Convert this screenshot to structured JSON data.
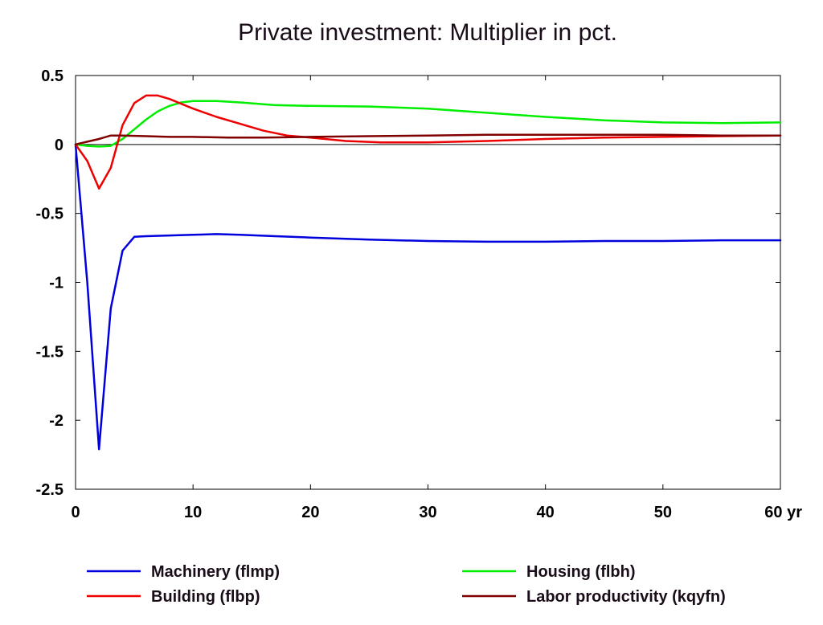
{
  "chart_data": {
    "type": "line",
    "title": "Private investment: Multiplier in pct.",
    "xlabel": "",
    "ylabel": "",
    "x_unit_label": "yr",
    "xlim": [
      0,
      60
    ],
    "ylim": [
      -2.5,
      0.5
    ],
    "x_ticks": [
      0,
      10,
      20,
      30,
      40,
      50,
      60
    ],
    "x_tick_labels": [
      "0",
      "10",
      "20",
      "30",
      "40",
      "50",
      "60 yr"
    ],
    "y_ticks": [
      0.5,
      0,
      -0.5,
      -1,
      -1.5,
      -2,
      -2.5
    ],
    "y_tick_labels": [
      "0.5",
      "0",
      "-0.5",
      "-1",
      "-1.5",
      "-2",
      "-2.5"
    ],
    "grid": false,
    "zero_line": true,
    "legend_position": "bottom",
    "series": [
      {
        "name": "Machinery (flmp)",
        "color": "#0000dd",
        "points": [
          [
            0,
            0
          ],
          [
            1,
            -1.0
          ],
          [
            2,
            -2.21
          ],
          [
            3,
            -1.19
          ],
          [
            4,
            -0.77
          ],
          [
            5,
            -0.67
          ],
          [
            6,
            -0.665
          ],
          [
            8,
            -0.66
          ],
          [
            10,
            -0.655
          ],
          [
            12,
            -0.65
          ],
          [
            14,
            -0.655
          ],
          [
            17,
            -0.665
          ],
          [
            20,
            -0.675
          ],
          [
            25,
            -0.69
          ],
          [
            30,
            -0.7
          ],
          [
            35,
            -0.705
          ],
          [
            40,
            -0.705
          ],
          [
            45,
            -0.7
          ],
          [
            50,
            -0.7
          ],
          [
            55,
            -0.695
          ],
          [
            60,
            -0.695
          ]
        ]
      },
      {
        "name": "Housing (flbh)",
        "color": "#00ee00",
        "points": [
          [
            0,
            0
          ],
          [
            1,
            -0.01
          ],
          [
            2,
            -0.015
          ],
          [
            3,
            -0.01
          ],
          [
            4,
            0.04
          ],
          [
            5,
            0.11
          ],
          [
            6,
            0.18
          ],
          [
            7,
            0.24
          ],
          [
            8,
            0.28
          ],
          [
            9,
            0.305
          ],
          [
            10,
            0.315
          ],
          [
            12,
            0.315
          ],
          [
            14,
            0.305
          ],
          [
            17,
            0.285
          ],
          [
            20,
            0.28
          ],
          [
            25,
            0.275
          ],
          [
            30,
            0.26
          ],
          [
            35,
            0.23
          ],
          [
            40,
            0.2
          ],
          [
            45,
            0.175
          ],
          [
            50,
            0.16
          ],
          [
            55,
            0.155
          ],
          [
            60,
            0.16
          ]
        ]
      },
      {
        "name": "Building (flbp)",
        "color": "#ee0000",
        "points": [
          [
            0,
            0
          ],
          [
            1,
            -0.12
          ],
          [
            2,
            -0.32
          ],
          [
            3,
            -0.17
          ],
          [
            4,
            0.14
          ],
          [
            5,
            0.3
          ],
          [
            6,
            0.355
          ],
          [
            7,
            0.355
          ],
          [
            8,
            0.33
          ],
          [
            10,
            0.26
          ],
          [
            12,
            0.2
          ],
          [
            14,
            0.15
          ],
          [
            16,
            0.1
          ],
          [
            18,
            0.065
          ],
          [
            20,
            0.05
          ],
          [
            23,
            0.025
          ],
          [
            26,
            0.015
          ],
          [
            30,
            0.015
          ],
          [
            35,
            0.025
          ],
          [
            40,
            0.04
          ],
          [
            45,
            0.05
          ],
          [
            50,
            0.055
          ],
          [
            55,
            0.06
          ],
          [
            60,
            0.065
          ]
        ]
      },
      {
        "name": "Labor productivity (kqyfn)",
        "color": "#800000",
        "points": [
          [
            0,
            0
          ],
          [
            1,
            0.02
          ],
          [
            2,
            0.04
          ],
          [
            3,
            0.065
          ],
          [
            4,
            0.065
          ],
          [
            6,
            0.06
          ],
          [
            8,
            0.055
          ],
          [
            10,
            0.055
          ],
          [
            13,
            0.05
          ],
          [
            16,
            0.05
          ],
          [
            20,
            0.055
          ],
          [
            25,
            0.06
          ],
          [
            30,
            0.065
          ],
          [
            35,
            0.07
          ],
          [
            40,
            0.07
          ],
          [
            45,
            0.07
          ],
          [
            50,
            0.07
          ],
          [
            55,
            0.065
          ],
          [
            60,
            0.065
          ]
        ]
      }
    ],
    "legend": [
      {
        "label": "Machinery (flmp)",
        "color": "#0000dd"
      },
      {
        "label": "Housing (flbh)",
        "color": "#00ee00"
      },
      {
        "label": "Building (flbp)",
        "color": "#ee0000"
      },
      {
        "label": "Labor productivity (kqyfn)",
        "color": "#800000"
      }
    ]
  }
}
